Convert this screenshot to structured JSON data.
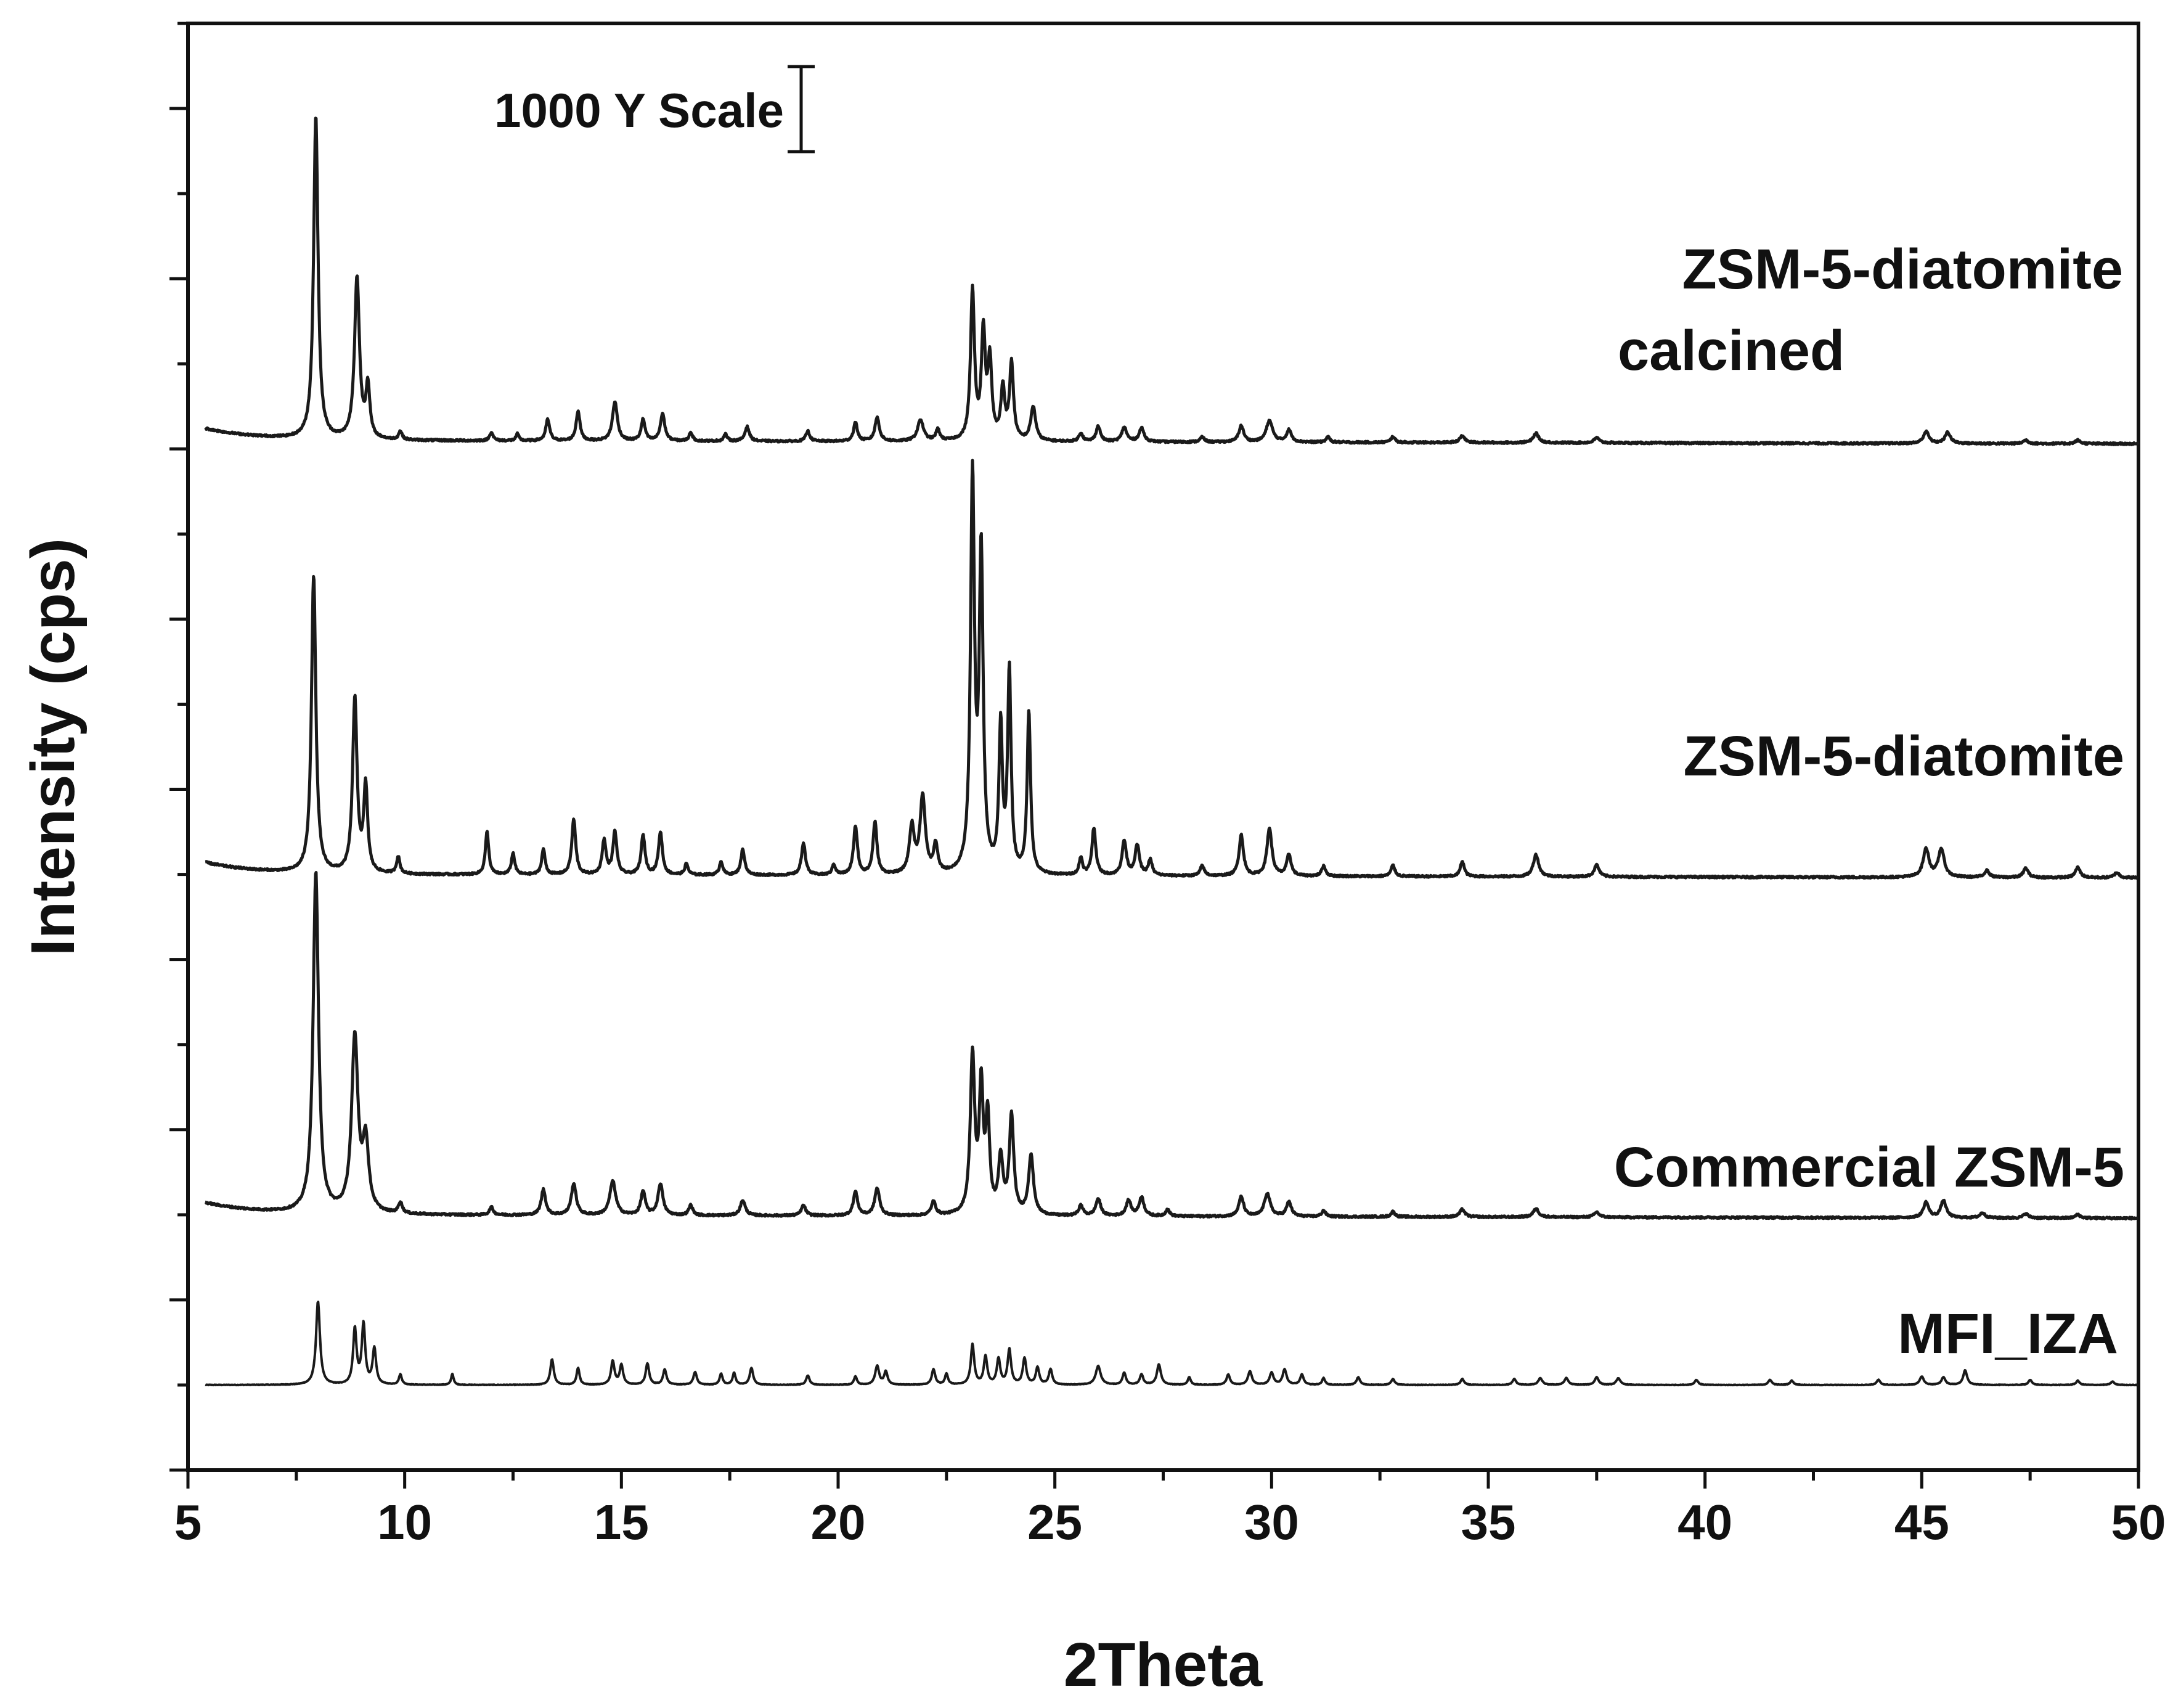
{
  "chart_data": {
    "type": "line",
    "title": "",
    "xlabel": "2Theta",
    "ylabel": "Intensity (cps)",
    "xlim": [
      5,
      50
    ],
    "x_ticks": [
      5,
      10,
      15,
      20,
      25,
      30,
      35,
      40,
      45,
      50
    ],
    "x_tick_labels": [
      "5",
      "10",
      "15",
      "20",
      "25",
      "30",
      "35",
      "40",
      "45",
      "50"
    ],
    "ylim": [
      0,
      17000
    ],
    "y_tick_labels_shown": false,
    "y_major_tick_step": 2000,
    "y_minor_tick_step": 1000,
    "grid": false,
    "scale_bar": {
      "label": "1000 Y Scale",
      "value": 1000
    },
    "series": [
      {
        "name": "MFI_IZA",
        "label": "MFI_IZA",
        "baseline": 1000,
        "start_x": 5.4,
        "peaks": [
          [
            8.0,
            980,
            0.08
          ],
          [
            8.85,
            650,
            0.07
          ],
          [
            9.05,
            700,
            0.07
          ],
          [
            9.3,
            420,
            0.07
          ],
          [
            9.9,
            120,
            0.06
          ],
          [
            11.1,
            130,
            0.05
          ],
          [
            13.4,
            300,
            0.07
          ],
          [
            14.0,
            200,
            0.06
          ],
          [
            14.8,
            280,
            0.07
          ],
          [
            15.0,
            230,
            0.07
          ],
          [
            15.6,
            250,
            0.07
          ],
          [
            16.0,
            180,
            0.07
          ],
          [
            16.7,
            150,
            0.07
          ],
          [
            17.3,
            130,
            0.06
          ],
          [
            17.6,
            140,
            0.06
          ],
          [
            18.0,
            200,
            0.07
          ],
          [
            19.3,
            110,
            0.07
          ],
          [
            20.4,
            100,
            0.06
          ],
          [
            20.9,
            220,
            0.08
          ],
          [
            21.1,
            150,
            0.07
          ],
          [
            22.2,
            180,
            0.07
          ],
          [
            22.5,
            130,
            0.06
          ],
          [
            23.1,
            470,
            0.07
          ],
          [
            23.4,
            330,
            0.07
          ],
          [
            23.7,
            300,
            0.07
          ],
          [
            23.95,
            410,
            0.07
          ],
          [
            24.3,
            310,
            0.07
          ],
          [
            24.6,
            200,
            0.07
          ],
          [
            24.9,
            180,
            0.07
          ],
          [
            26.0,
            220,
            0.1
          ],
          [
            26.6,
            140,
            0.07
          ],
          [
            27.0,
            120,
            0.07
          ],
          [
            27.4,
            240,
            0.08
          ],
          [
            28.1,
            90,
            0.06
          ],
          [
            29.0,
            120,
            0.07
          ],
          [
            29.5,
            160,
            0.08
          ],
          [
            30.0,
            140,
            0.08
          ],
          [
            30.3,
            180,
            0.08
          ],
          [
            30.7,
            120,
            0.07
          ],
          [
            31.2,
            80,
            0.06
          ],
          [
            32.0,
            90,
            0.07
          ],
          [
            32.8,
            70,
            0.07
          ],
          [
            34.4,
            70,
            0.07
          ],
          [
            35.6,
            70,
            0.07
          ],
          [
            36.2,
            80,
            0.08
          ],
          [
            36.8,
            80,
            0.08
          ],
          [
            37.5,
            90,
            0.08
          ],
          [
            38.0,
            80,
            0.08
          ],
          [
            39.8,
            60,
            0.07
          ],
          [
            41.5,
            60,
            0.07
          ],
          [
            42.0,
            50,
            0.07
          ],
          [
            44.0,
            60,
            0.07
          ],
          [
            45.0,
            100,
            0.08
          ],
          [
            45.5,
            90,
            0.08
          ],
          [
            46.0,
            170,
            0.08
          ],
          [
            47.5,
            60,
            0.07
          ],
          [
            48.6,
            50,
            0.07
          ],
          [
            49.4,
            40,
            0.07
          ]
        ]
      },
      {
        "name": "Commercial ZSM-5",
        "label": "Commercial ZSM-5",
        "baseline": 3000,
        "start_x": 5.4,
        "peaks": [
          [
            7.95,
            4000,
            0.11
          ],
          [
            8.85,
            2050,
            0.13
          ],
          [
            9.1,
            800,
            0.12
          ],
          [
            9.9,
            130,
            0.08
          ],
          [
            12.0,
            90,
            0.08
          ],
          [
            13.2,
            300,
            0.09
          ],
          [
            13.9,
            370,
            0.1
          ],
          [
            14.8,
            400,
            0.12
          ],
          [
            15.5,
            280,
            0.09
          ],
          [
            15.9,
            370,
            0.1
          ],
          [
            16.6,
            120,
            0.08
          ],
          [
            17.8,
            180,
            0.1
          ],
          [
            19.2,
            120,
            0.09
          ],
          [
            20.4,
            280,
            0.09
          ],
          [
            20.9,
            320,
            0.1
          ],
          [
            22.2,
            160,
            0.09
          ],
          [
            23.1,
            1850,
            0.09
          ],
          [
            23.3,
            1450,
            0.08
          ],
          [
            23.45,
            1100,
            0.08
          ],
          [
            23.75,
            650,
            0.09
          ],
          [
            24.0,
            1150,
            0.09
          ],
          [
            24.45,
            700,
            0.1
          ],
          [
            25.6,
            120,
            0.09
          ],
          [
            26.0,
            200,
            0.1
          ],
          [
            26.7,
            180,
            0.1
          ],
          [
            27.0,
            220,
            0.1
          ],
          [
            27.6,
            80,
            0.08
          ],
          [
            29.3,
            230,
            0.1
          ],
          [
            29.9,
            270,
            0.12
          ],
          [
            30.4,
            170,
            0.1
          ],
          [
            31.2,
            70,
            0.08
          ],
          [
            32.8,
            60,
            0.08
          ],
          [
            34.4,
            90,
            0.1
          ],
          [
            36.1,
            100,
            0.11
          ],
          [
            37.5,
            60,
            0.1
          ],
          [
            45.1,
            180,
            0.11
          ],
          [
            45.5,
            200,
            0.11
          ],
          [
            46.4,
            60,
            0.1
          ],
          [
            47.4,
            50,
            0.1
          ],
          [
            48.6,
            40,
            0.1
          ]
        ]
      },
      {
        "name": "ZSM-5-diatomite",
        "label": "ZSM-5-diatomite",
        "baseline": 7000,
        "start_x": 5.4,
        "peaks": [
          [
            7.9,
            3500,
            0.09
          ],
          [
            8.85,
            2050,
            0.09
          ],
          [
            9.1,
            1000,
            0.08
          ],
          [
            9.85,
            200,
            0.07
          ],
          [
            11.9,
            500,
            0.07
          ],
          [
            12.5,
            250,
            0.07
          ],
          [
            13.2,
            300,
            0.07
          ],
          [
            13.9,
            650,
            0.08
          ],
          [
            14.6,
            400,
            0.08
          ],
          [
            14.85,
            500,
            0.08
          ],
          [
            15.5,
            460,
            0.08
          ],
          [
            15.9,
            500,
            0.08
          ],
          [
            16.5,
            130,
            0.07
          ],
          [
            17.3,
            160,
            0.07
          ],
          [
            17.8,
            300,
            0.08
          ],
          [
            19.2,
            380,
            0.08
          ],
          [
            19.9,
            120,
            0.07
          ],
          [
            20.4,
            570,
            0.08
          ],
          [
            20.85,
            620,
            0.08
          ],
          [
            21.7,
            550,
            0.1
          ],
          [
            21.95,
            900,
            0.11
          ],
          [
            22.25,
            330,
            0.08
          ],
          [
            23.1,
            4600,
            0.08
          ],
          [
            23.3,
            3700,
            0.08
          ],
          [
            23.75,
            1700,
            0.07
          ],
          [
            23.95,
            2350,
            0.07
          ],
          [
            24.4,
            1900,
            0.07
          ],
          [
            25.6,
            200,
            0.07
          ],
          [
            25.9,
            550,
            0.08
          ],
          [
            26.6,
            400,
            0.09
          ],
          [
            26.9,
            350,
            0.09
          ],
          [
            27.2,
            180,
            0.08
          ],
          [
            28.4,
            120,
            0.08
          ],
          [
            29.3,
            480,
            0.09
          ],
          [
            29.95,
            560,
            0.1
          ],
          [
            30.4,
            250,
            0.09
          ],
          [
            31.2,
            120,
            0.08
          ],
          [
            32.8,
            130,
            0.08
          ],
          [
            34.4,
            180,
            0.08
          ],
          [
            36.1,
            260,
            0.11
          ],
          [
            37.5,
            140,
            0.1
          ],
          [
            45.1,
            330,
            0.12
          ],
          [
            45.45,
            330,
            0.12
          ],
          [
            46.5,
            80,
            0.1
          ],
          [
            47.4,
            110,
            0.1
          ],
          [
            48.6,
            120,
            0.1
          ],
          [
            49.5,
            60,
            0.1
          ]
        ]
      },
      {
        "name": "ZSM-5-diatomite calcined",
        "label_line1": "ZSM-5-diatomite",
        "label_line2": "calcined",
        "baseline": 12100,
        "start_x": 5.4,
        "peaks": [
          [
            7.95,
            3800,
            0.09
          ],
          [
            8.9,
            1900,
            0.1
          ],
          [
            9.15,
            600,
            0.08
          ],
          [
            9.9,
            100,
            0.07
          ],
          [
            12.0,
            100,
            0.07
          ],
          [
            12.6,
            80,
            0.06
          ],
          [
            13.3,
            250,
            0.08
          ],
          [
            14.0,
            350,
            0.08
          ],
          [
            14.85,
            460,
            0.1
          ],
          [
            15.5,
            250,
            0.08
          ],
          [
            15.95,
            320,
            0.09
          ],
          [
            16.6,
            100,
            0.07
          ],
          [
            17.4,
            80,
            0.07
          ],
          [
            17.9,
            170,
            0.09
          ],
          [
            19.3,
            120,
            0.08
          ],
          [
            20.4,
            220,
            0.08
          ],
          [
            20.9,
            280,
            0.09
          ],
          [
            21.9,
            250,
            0.12
          ],
          [
            22.3,
            130,
            0.08
          ],
          [
            23.1,
            1750,
            0.08
          ],
          [
            23.35,
            1250,
            0.08
          ],
          [
            23.5,
            900,
            0.08
          ],
          [
            23.8,
            600,
            0.08
          ],
          [
            24.0,
            900,
            0.08
          ],
          [
            24.5,
            400,
            0.1
          ],
          [
            25.6,
            100,
            0.08
          ],
          [
            26.0,
            180,
            0.09
          ],
          [
            26.6,
            170,
            0.1
          ],
          [
            27.0,
            160,
            0.1
          ],
          [
            28.4,
            60,
            0.08
          ],
          [
            29.3,
            190,
            0.1
          ],
          [
            29.95,
            250,
            0.13
          ],
          [
            30.4,
            140,
            0.1
          ],
          [
            31.3,
            60,
            0.08
          ],
          [
            32.8,
            70,
            0.08
          ],
          [
            34.4,
            80,
            0.1
          ],
          [
            36.1,
            110,
            0.11
          ],
          [
            37.5,
            60,
            0.1
          ],
          [
            45.1,
            140,
            0.11
          ],
          [
            45.6,
            130,
            0.11
          ],
          [
            47.4,
            40,
            0.1
          ],
          [
            48.6,
            40,
            0.1
          ]
        ]
      }
    ]
  }
}
